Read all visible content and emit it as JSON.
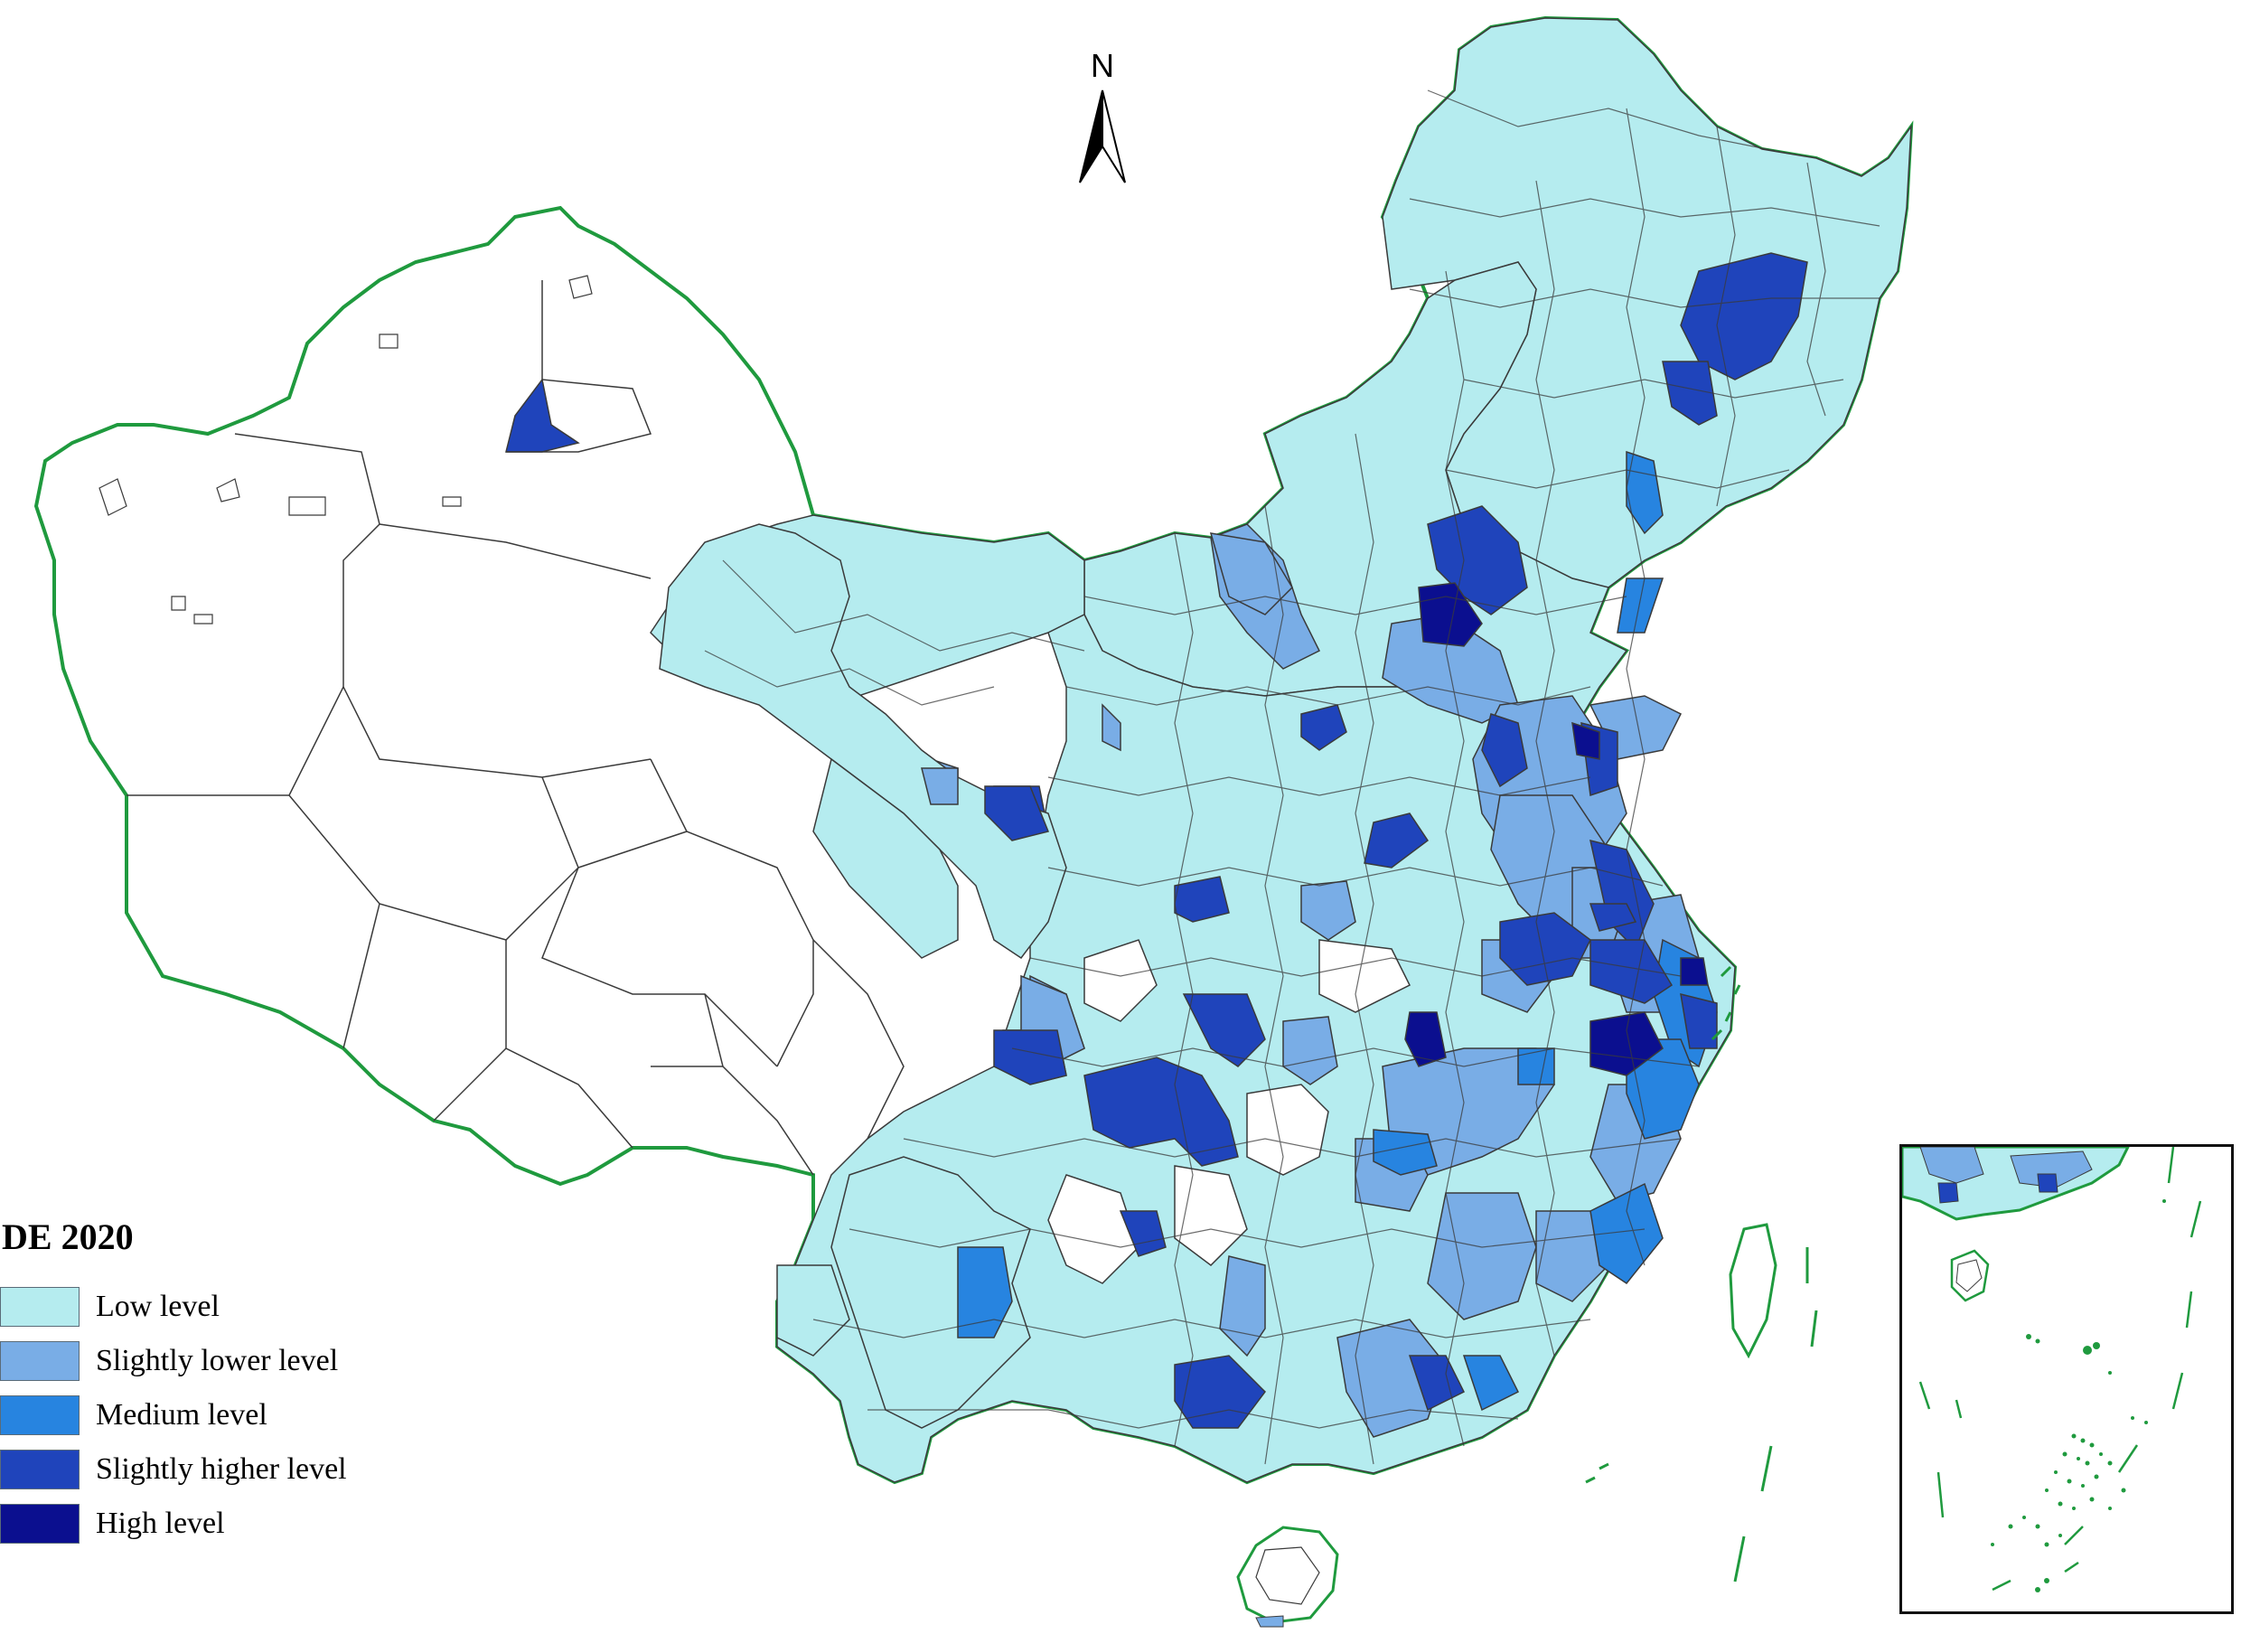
{
  "map": {
    "north_label": "N",
    "legend": {
      "title": "DE 2020",
      "items": [
        {
          "label": "Low level",
          "color": "#b5ecef"
        },
        {
          "label": "Slightly lower level",
          "color": "#79ade6"
        },
        {
          "label": "Medium level",
          "color": "#2784e0"
        },
        {
          "label": "Slightly higher level",
          "color": "#1f44bb"
        },
        {
          "label": "High level",
          "color": "#0b0f8f"
        }
      ]
    },
    "colors": {
      "border": "#1f9a3e",
      "no_data": "#ffffff",
      "internal_border": "#3a3a3a"
    }
  }
}
